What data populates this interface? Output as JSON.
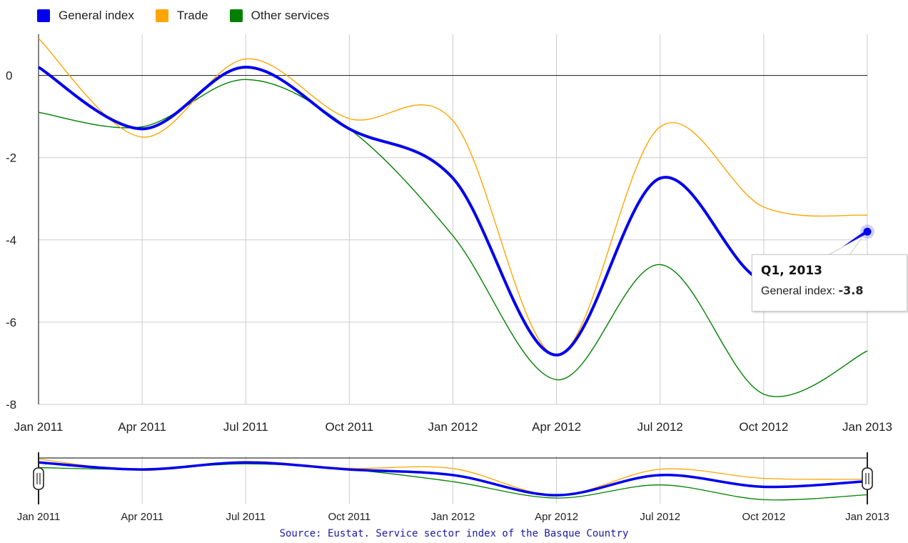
{
  "legend": {
    "items": [
      {
        "label": "General index",
        "color": "#0000ee"
      },
      {
        "label": "Trade",
        "color": "#ffa500"
      },
      {
        "label": "Other services",
        "color": "#008000"
      }
    ]
  },
  "tooltip": {
    "title": "Q1, 2013",
    "series_label": "General index:",
    "value": "-3.8"
  },
  "source": "Source: Eustat. Service sector index of the Basque Country",
  "chart_data": {
    "type": "line",
    "title": "",
    "xlabel": "",
    "ylabel": "",
    "x": [
      "Jan 2011",
      "Apr 2011",
      "Jul 2011",
      "Oct 2011",
      "Jan 2012",
      "Apr 2012",
      "Jul 2012",
      "Oct 2012",
      "Jan 2013"
    ],
    "ylim": [
      -8,
      1
    ],
    "yticks": [
      0,
      -2,
      -4,
      -6,
      -8
    ],
    "grid": true,
    "legend_position": "top-left",
    "series": [
      {
        "name": "General index",
        "color": "#0000ee",
        "values": [
          0.2,
          -1.3,
          0.2,
          -1.3,
          -2.5,
          -6.8,
          -2.5,
          -5.0,
          -3.8
        ]
      },
      {
        "name": "Trade",
        "color": "#ffa500",
        "values": [
          0.9,
          -1.5,
          0.4,
          -1.05,
          -1.1,
          -6.8,
          -1.25,
          -3.2,
          -3.4
        ]
      },
      {
        "name": "Other services",
        "color": "#008000",
        "values": [
          -0.9,
          -1.25,
          -0.1,
          -1.3,
          -3.9,
          -7.4,
          -4.6,
          -7.75,
          -6.7
        ]
      }
    ],
    "navigator": {
      "x_labels": [
        "Jan 2011",
        "Apr 2011",
        "Jul 2011",
        "Oct 2011",
        "Jan 2012",
        "Apr 2012",
        "Jul 2012",
        "Oct 2012",
        "Jan 2013"
      ]
    }
  }
}
